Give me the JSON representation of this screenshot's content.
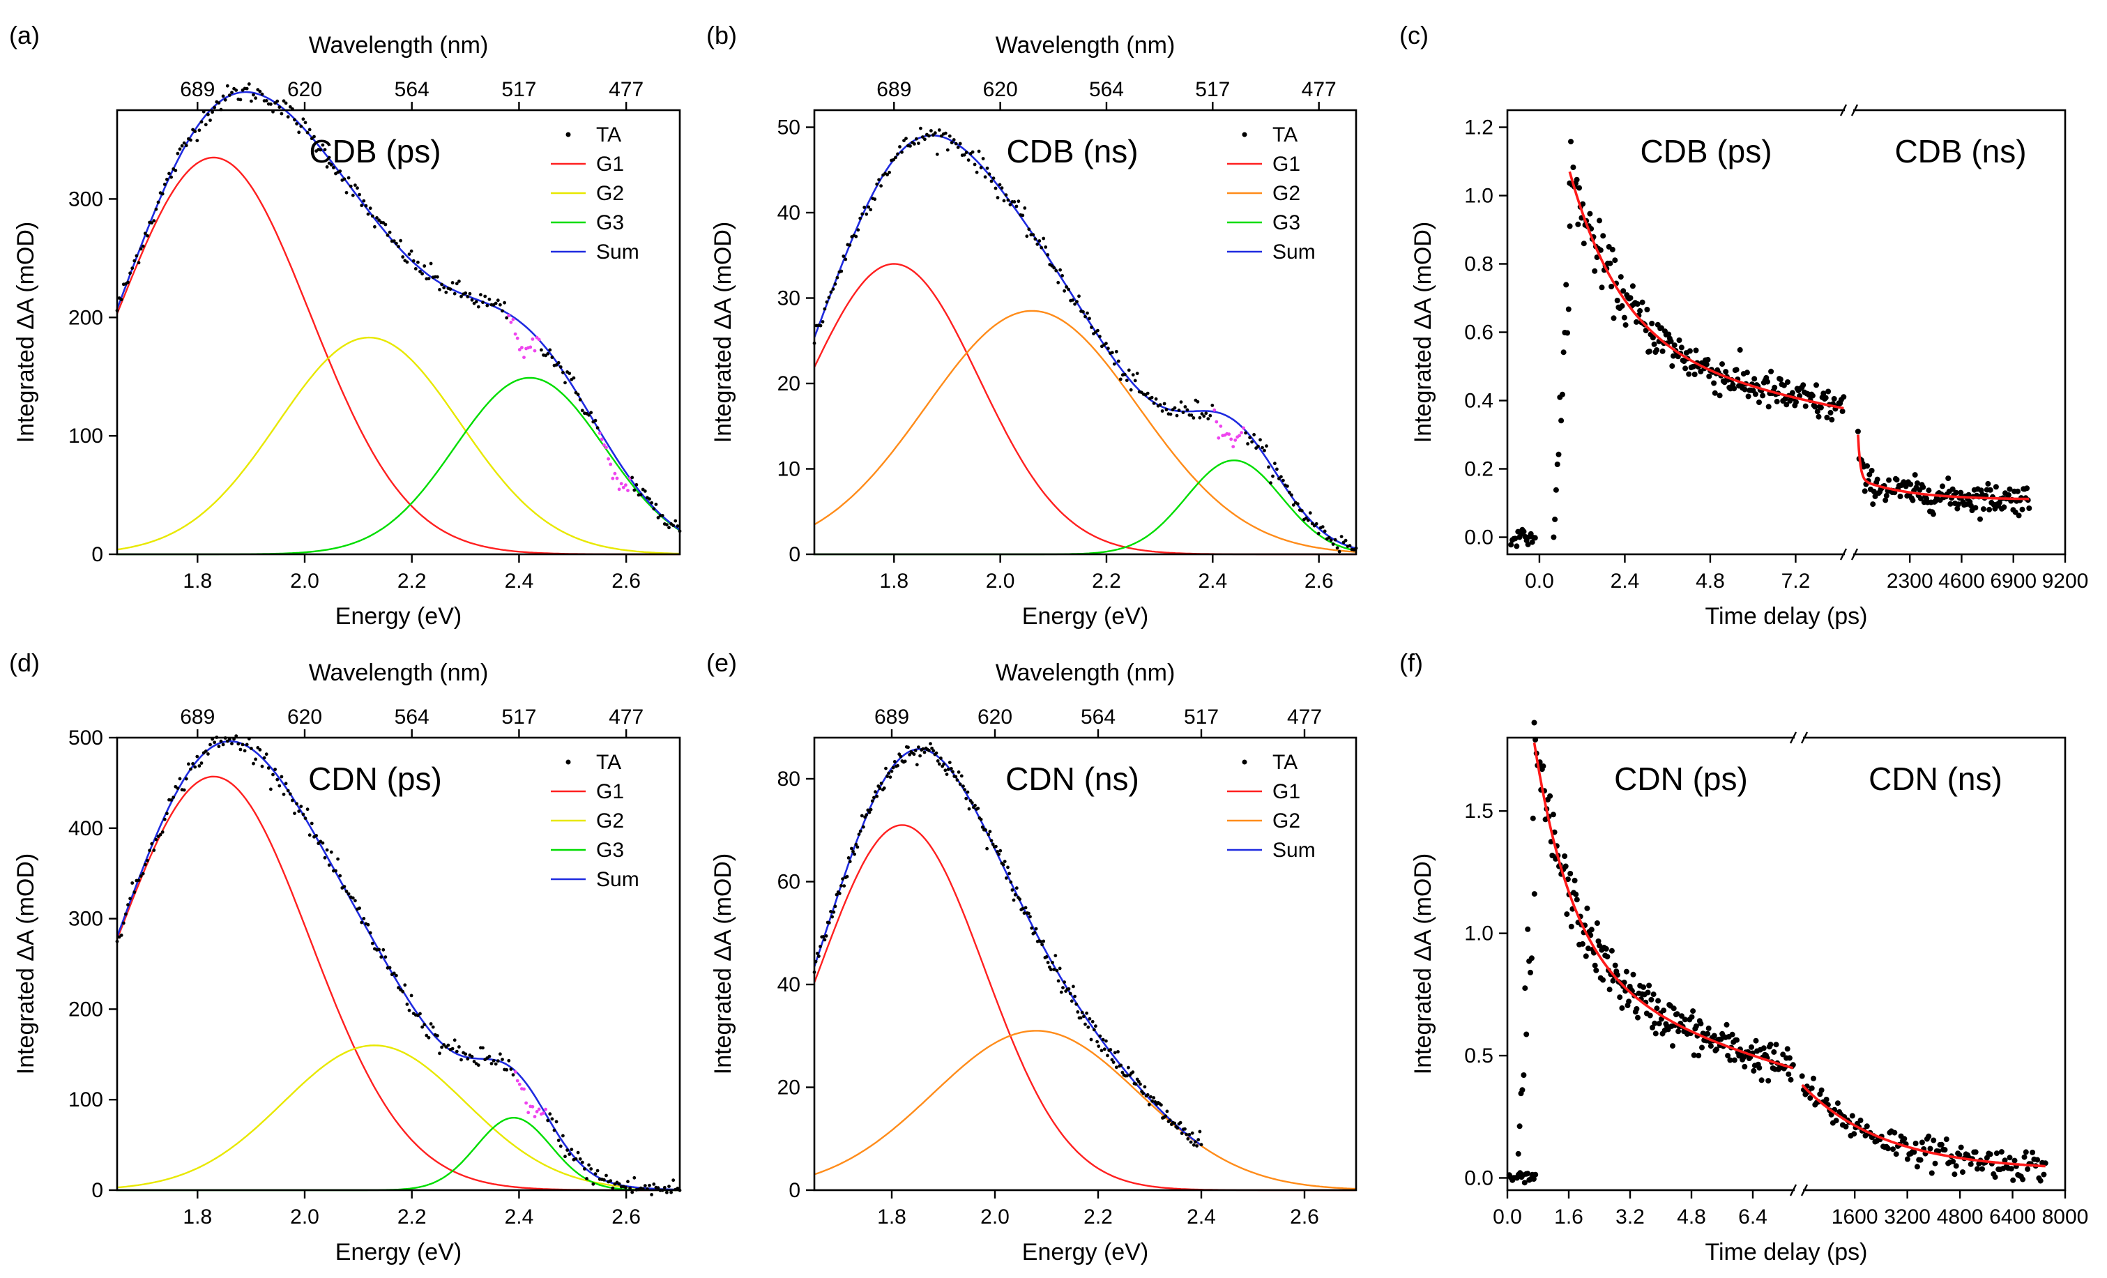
{
  "figure": {
    "x_energy_label": "Energy (eV)",
    "x_wavelength_label": "Wavelength (nm)",
    "y_label": "Integrated ΔA (mOD)",
    "x_time_label": "Time delay (ps)",
    "wavelength_ticks": [
      "689",
      "620",
      "564",
      "517",
      "477"
    ]
  },
  "chart_data": [
    {
      "id": "a",
      "panel_label": "(a)",
      "type": "line",
      "title": "CDB (ps)",
      "xlim": [
        1.65,
        2.7
      ],
      "ylim": [
        0,
        375
      ],
      "xticks": [
        "1.8",
        "2.0",
        "2.2",
        "2.4",
        "2.6"
      ],
      "yticks": [
        "0",
        "100",
        "200",
        "300"
      ],
      "legend": [
        "TA",
        "G1",
        "G2",
        "G3",
        "Sum"
      ],
      "series": [
        {
          "name": "G1",
          "color": "#ff2020",
          "center_eV": 1.83,
          "amplitude": 335,
          "sigma": 0.18
        },
        {
          "name": "G2",
          "color": "#e8e800",
          "center_eV": 2.12,
          "amplitude": 183,
          "sigma": 0.17
        },
        {
          "name": "G3",
          "color": "#00dd00",
          "center_eV": 2.42,
          "amplitude": 149,
          "sigma": 0.14
        }
      ],
      "dip_eV": [
        2.41,
        2.58
      ]
    },
    {
      "id": "b",
      "panel_label": "(b)",
      "type": "line",
      "title": "CDB (ns)",
      "xlim": [
        1.65,
        2.67
      ],
      "ylim": [
        0,
        52
      ],
      "xticks": [
        "1.8",
        "2.0",
        "2.2",
        "2.4",
        "2.6"
      ],
      "yticks": [
        "0",
        "10",
        "20",
        "30",
        "40",
        "50"
      ],
      "legend": [
        "TA",
        "G1",
        "G2",
        "G3",
        "Sum"
      ],
      "series": [
        {
          "name": "G1",
          "color": "#ff2020",
          "center_eV": 1.8,
          "amplitude": 34,
          "sigma": 0.16
        },
        {
          "name": "G2",
          "color": "#ff8c1a",
          "center_eV": 2.06,
          "amplitude": 28.5,
          "sigma": 0.2
        },
        {
          "name": "G3",
          "color": "#00dd00",
          "center_eV": 2.44,
          "amplitude": 11,
          "sigma": 0.09
        }
      ],
      "dip_eV": [
        2.43
      ]
    },
    {
      "id": "c",
      "panel_label": "(c)",
      "type": "scatter",
      "title_left": "CDB (ps)",
      "title_right": "CDB (ns)",
      "ylim": [
        -0.05,
        1.25
      ],
      "left_xlim": [
        -0.9,
        8.7
      ],
      "right_xlim": [
        -400,
        9200
      ],
      "left_xticks": [
        "0.0",
        "2.4",
        "4.8",
        "7.2"
      ],
      "right_xticks": [
        "2300",
        "4600",
        "6900",
        "9200"
      ],
      "yticks": [
        "0.0",
        "0.2",
        "0.4",
        "0.6",
        "0.8",
        "1.0",
        "1.2"
      ],
      "fit_ps": {
        "A1": 0.52,
        "tau1_ps": 1.5,
        "A2": 0.55,
        "tau2_ps": 20
      },
      "fit_ns": {
        "A1": 0.13,
        "tau1_ps": 100,
        "A2": 0.06,
        "tau2_ps": 2200,
        "offset": 0.11
      },
      "peak": 1.1
    },
    {
      "id": "d",
      "panel_label": "(d)",
      "type": "line",
      "title": "CDN (ps)",
      "xlim": [
        1.65,
        2.7
      ],
      "ylim": [
        0,
        500
      ],
      "xticks": [
        "1.8",
        "2.0",
        "2.2",
        "2.4",
        "2.6"
      ],
      "yticks": [
        "0",
        "100",
        "200",
        "300",
        "400",
        "500"
      ],
      "legend": [
        "TA",
        "G1",
        "G2",
        "G3",
        "Sum"
      ],
      "series": [
        {
          "name": "G1",
          "color": "#ff2020",
          "center_eV": 1.83,
          "amplitude": 457,
          "sigma": 0.18
        },
        {
          "name": "G2",
          "color": "#e8e800",
          "center_eV": 2.13,
          "amplitude": 160,
          "sigma": 0.17
        },
        {
          "name": "G3",
          "color": "#00dd00",
          "center_eV": 2.39,
          "amplitude": 80,
          "sigma": 0.07
        }
      ],
      "dip_eV": [
        2.42
      ]
    },
    {
      "id": "e",
      "panel_label": "(e)",
      "type": "line",
      "title": "CDN (ns)",
      "xlim": [
        1.65,
        2.7
      ],
      "ylim": [
        0,
        88
      ],
      "xticks": [
        "1.8",
        "2.0",
        "2.2",
        "2.4",
        "2.6"
      ],
      "yticks": [
        "0",
        "20",
        "40",
        "60",
        "80"
      ],
      "legend": [
        "TA",
        "G1",
        "G2",
        "Sum"
      ],
      "series": [
        {
          "name": "G1",
          "color": "#ff2020",
          "center_eV": 1.82,
          "amplitude": 71,
          "sigma": 0.16
        },
        {
          "name": "G2",
          "color": "#ff8c1a",
          "center_eV": 2.08,
          "amplitude": 31,
          "sigma": 0.2
        }
      ],
      "data_end_eV": 2.4
    },
    {
      "id": "f",
      "panel_label": "(f)",
      "type": "scatter",
      "title_left": "CDN (ps)",
      "title_right": "CDN (ns)",
      "ylim": [
        -0.05,
        1.8
      ],
      "left_xlim": [
        0.0,
        7.6
      ],
      "right_xlim": [
        -100,
        8000
      ],
      "left_xticks": [
        "0.0",
        "1.6",
        "3.2",
        "4.8",
        "6.4"
      ],
      "right_xticks": [
        "1600",
        "3200",
        "4800",
        "6400",
        "8000"
      ],
      "yticks": [
        "0.0",
        "0.5",
        "1.0",
        "1.5"
      ],
      "fit_ps": {
        "A1": 0.9,
        "tau1_ps": 1.0,
        "A2": 0.88,
        "tau2_ps": 10
      },
      "fit_ns": {
        "A1": 0.35,
        "tau1_ps": 2500,
        "offset": 0.03
      },
      "peak": 1.75
    }
  ]
}
